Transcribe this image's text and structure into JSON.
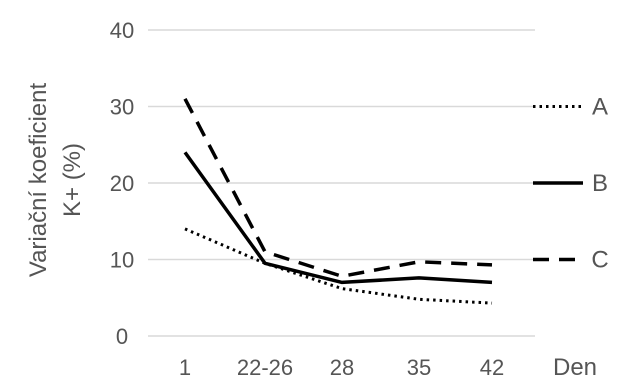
{
  "chart_data": {
    "type": "line",
    "title": "",
    "xlabel": "Den",
    "ylabel": [
      "Variační koeficient",
      "K+ (%)"
    ],
    "categories": [
      "1",
      "22-26",
      "28",
      "35",
      "42"
    ],
    "ylim": [
      0,
      40
    ],
    "yticks": [
      0,
      10,
      20,
      30,
      40
    ],
    "grid": true,
    "legend_position": "right",
    "series": [
      {
        "name": "A",
        "style": "dotted",
        "color": "#000000",
        "values": [
          14,
          9.5,
          6.2,
          4.8,
          4.3
        ]
      },
      {
        "name": "B",
        "style": "solid",
        "color": "#000000",
        "values": [
          24,
          9.5,
          7.0,
          7.6,
          7.0
        ]
      },
      {
        "name": "C",
        "style": "dashed",
        "color": "#000000",
        "values": [
          31,
          11.0,
          7.8,
          9.7,
          9.3
        ]
      }
    ]
  }
}
